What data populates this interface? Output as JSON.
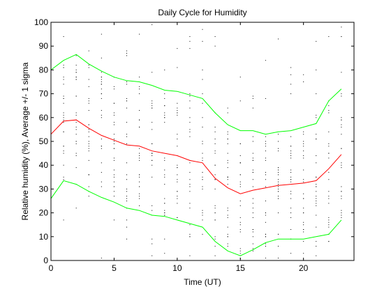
{
  "chart_data": {
    "type": "line",
    "title": "Daily Cycle for Humidity",
    "xlabel": "Time (UT)",
    "ylabel": "Relative humidity (%), Average +/- 1 sigma",
    "xlim": [
      0,
      24
    ],
    "ylim": [
      0,
      100
    ],
    "xticks": [
      0,
      5,
      10,
      15,
      20
    ],
    "yticks": [
      0,
      10,
      20,
      30,
      40,
      50,
      60,
      70,
      80,
      90,
      100
    ],
    "grid": false,
    "x": [
      0,
      1,
      2,
      3,
      4,
      5,
      6,
      7,
      8,
      9,
      10,
      11,
      12,
      13,
      14,
      15,
      16,
      17,
      18,
      19,
      20,
      21,
      22,
      23
    ],
    "series": [
      {
        "role": "average",
        "color": "#ff0000",
        "values": [
          53,
          58.5,
          59,
          55.5,
          52.5,
          50.5,
          48.5,
          48,
          46,
          45,
          44,
          42,
          41,
          34.5,
          30.5,
          28,
          29.5,
          30.5,
          31.5,
          32,
          32.5,
          33.5,
          38.5,
          44.5
        ]
      },
      {
        "role": "average_plus_sigma",
        "color": "#00ff00",
        "values": [
          80,
          84,
          86.5,
          82.5,
          79.5,
          77,
          75.5,
          75,
          73.5,
          71.5,
          71,
          69.5,
          68,
          62,
          57,
          54.5,
          54.5,
          53,
          54,
          54.5,
          56,
          57.5,
          67,
          72
        ]
      },
      {
        "role": "average_minus_sigma",
        "color": "#00ff00",
        "values": [
          26,
          33.5,
          32,
          29,
          26.5,
          24.5,
          22,
          21,
          19,
          18.5,
          17,
          15.5,
          14,
          8,
          4,
          2,
          4.5,
          7.5,
          9,
          9,
          9,
          10,
          11,
          17
        ]
      }
    ],
    "scatter_color": "#000000"
  }
}
